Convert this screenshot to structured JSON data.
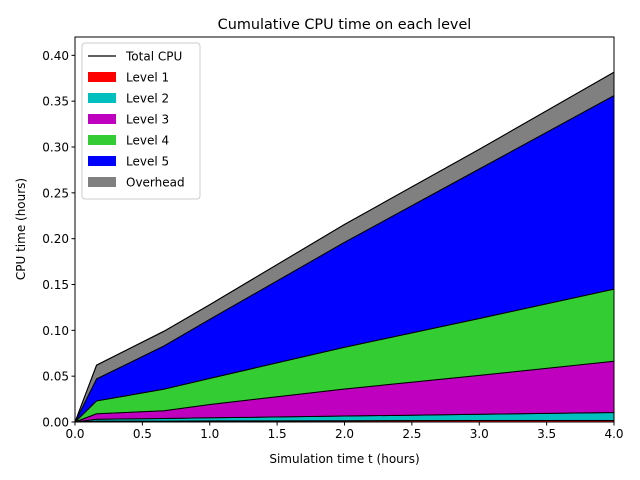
{
  "chart_data": {
    "type": "area",
    "stacked": true,
    "title": "Cumulative CPU time on each level",
    "xlabel": "Simulation time t (hours)",
    "ylabel": "CPU time (hours)",
    "xlim": [
      0,
      4
    ],
    "ylim": [
      0,
      0.42
    ],
    "xticks": [
      "0.0",
      "0.5",
      "1.0",
      "1.5",
      "2.0",
      "2.5",
      "3.0",
      "3.5",
      "4.0"
    ],
    "yticks": [
      "0.00",
      "0.05",
      "0.10",
      "0.15",
      "0.20",
      "0.25",
      "0.30",
      "0.35",
      "0.40"
    ],
    "grid": false,
    "legend": "top-left",
    "x": [
      0,
      0.16,
      0.66,
      1.0,
      2.0,
      3.0,
      4.0
    ],
    "series": [
      {
        "name": "Level 1",
        "color": "#ff0000",
        "values": [
          0,
          0.001,
          0.001,
          0.0012,
          0.0014,
          0.0016,
          0.0018
        ]
      },
      {
        "name": "Level 2",
        "color": "#00bfbf",
        "values": [
          0,
          0.002,
          0.0028,
          0.0034,
          0.0051,
          0.0068,
          0.0085
        ]
      },
      {
        "name": "Level 3",
        "color": "#bf00bf",
        "values": [
          0,
          0.006,
          0.0085,
          0.0145,
          0.0295,
          0.0425,
          0.056
        ]
      },
      {
        "name": "Level 4",
        "color": "#33cc33",
        "values": [
          0,
          0.014,
          0.0235,
          0.0285,
          0.0455,
          0.062,
          0.0787
        ]
      },
      {
        "name": "Level 5",
        "color": "#0000ff",
        "values": [
          0,
          0.024,
          0.0472,
          0.0644,
          0.1145,
          0.1631,
          0.2111
        ]
      },
      {
        "name": "Overhead",
        "color": "#808080",
        "values": [
          0,
          0.015,
          0.016,
          0.016,
          0.0195,
          0.0215,
          0.0255
        ]
      }
    ],
    "total": {
      "name": "Total CPU",
      "color": "#000000",
      "values": [
        0,
        0.062,
        0.099,
        0.128,
        0.2155,
        0.2975,
        0.3816
      ]
    }
  }
}
